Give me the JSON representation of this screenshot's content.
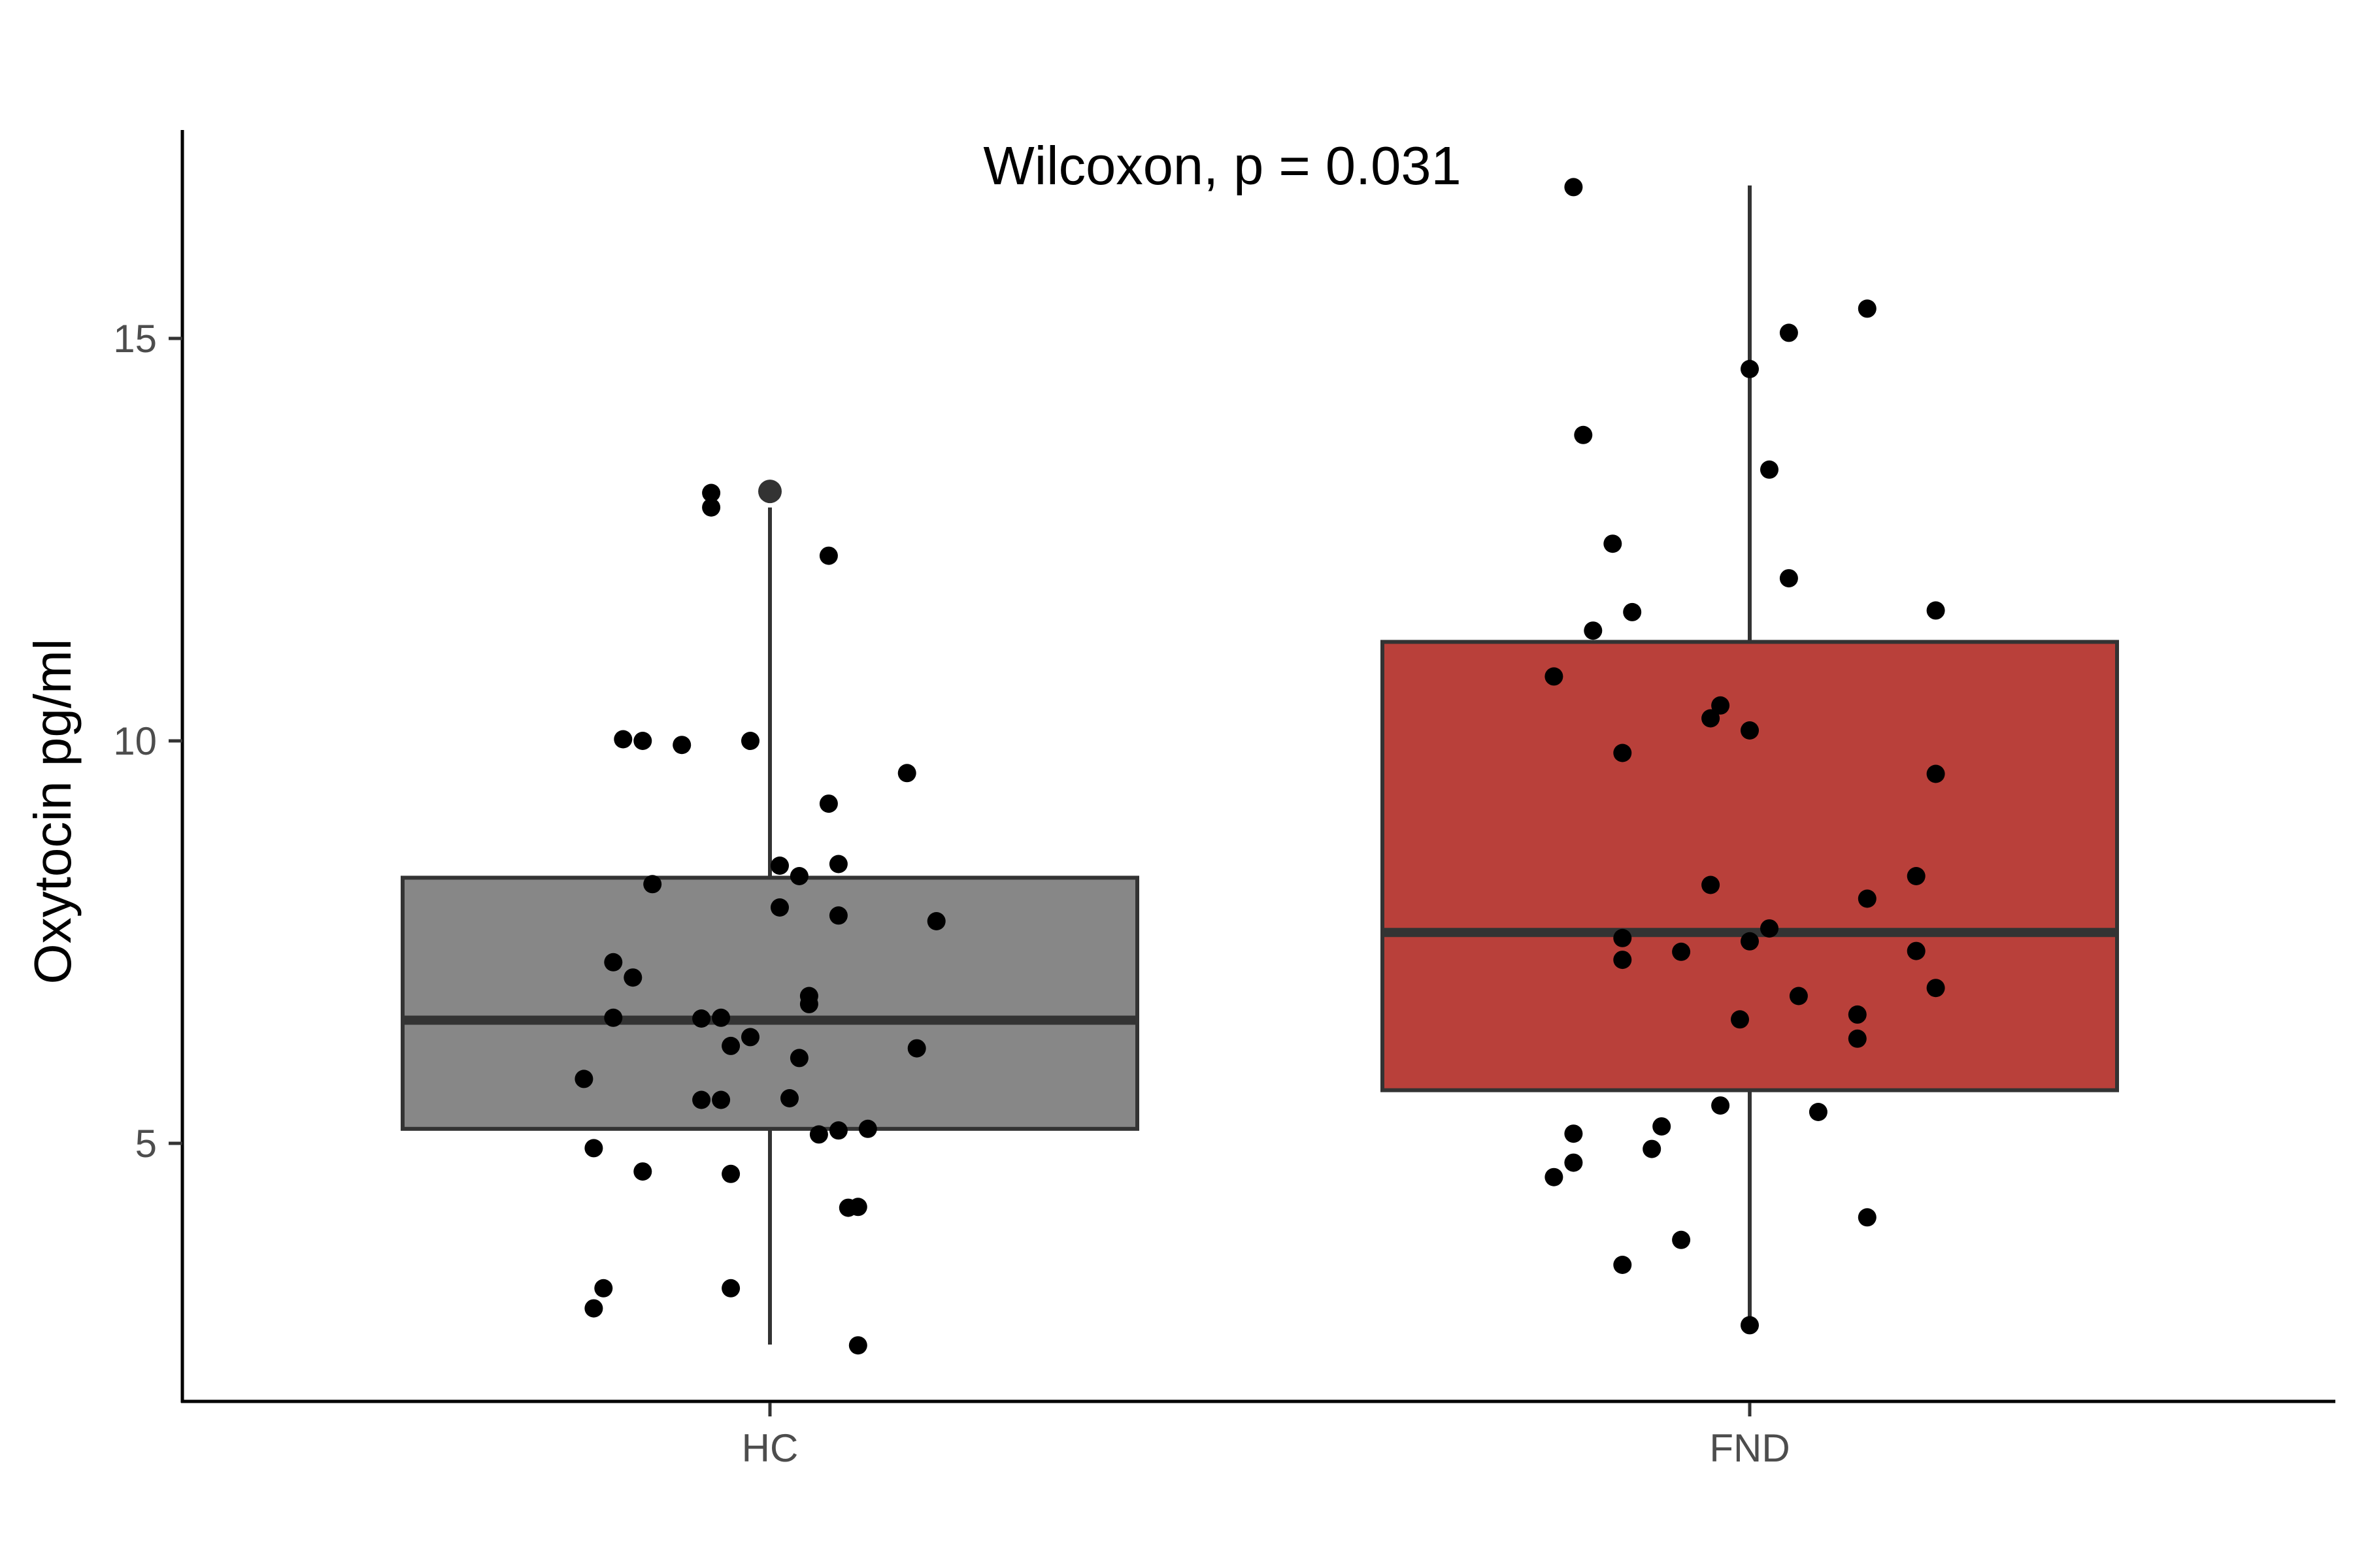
{
  "chart_data": {
    "type": "box",
    "annotation": "Wilcoxon, p = 0.031",
    "ylabel": "Oxytocin pg/ml",
    "xlabel": "",
    "categories": [
      "HC",
      "FND"
    ],
    "y_ticks": [
      5,
      10,
      15
    ],
    "ylim": [
      1.9,
      17.7
    ],
    "colors": {
      "HC": "#878787",
      "FND": "#b9403a",
      "outline": "#333333",
      "points": "#000000"
    },
    "boxes": [
      {
        "category": "HC",
        "q1": 5.18,
        "median": 6.53,
        "q3": 8.3,
        "whisker_low": 2.5,
        "whisker_high": 12.9,
        "outliers": [
          13.1
        ]
      },
      {
        "category": "FND",
        "q1": 5.66,
        "median": 7.62,
        "q3": 11.23,
        "whisker_low": 2.75,
        "whisker_high": 16.9,
        "outliers": []
      }
    ],
    "points": [
      {
        "group": "HC",
        "jitter": -0.06,
        "y": 13.08
      },
      {
        "group": "HC",
        "jitter": -0.06,
        "y": 12.9
      },
      {
        "group": "HC",
        "jitter": 0.06,
        "y": 12.3
      },
      {
        "group": "HC",
        "jitter": -0.15,
        "y": 10.02
      },
      {
        "group": "HC",
        "jitter": -0.13,
        "y": 10.0
      },
      {
        "group": "HC",
        "jitter": -0.09,
        "y": 9.95
      },
      {
        "group": "HC",
        "jitter": -0.02,
        "y": 10.0
      },
      {
        "group": "HC",
        "jitter": 0.14,
        "y": 9.6
      },
      {
        "group": "HC",
        "jitter": 0.06,
        "y": 9.22
      },
      {
        "group": "HC",
        "jitter": 0.01,
        "y": 8.45
      },
      {
        "group": "HC",
        "jitter": 0.07,
        "y": 8.47
      },
      {
        "group": "HC",
        "jitter": 0.03,
        "y": 8.32
      },
      {
        "group": "HC",
        "jitter": -0.12,
        "y": 8.22
      },
      {
        "group": "HC",
        "jitter": 0.01,
        "y": 7.93
      },
      {
        "group": "HC",
        "jitter": 0.07,
        "y": 7.83
      },
      {
        "group": "HC",
        "jitter": 0.17,
        "y": 7.76
      },
      {
        "group": "HC",
        "jitter": -0.16,
        "y": 7.25
      },
      {
        "group": "HC",
        "jitter": -0.14,
        "y": 7.06
      },
      {
        "group": "HC",
        "jitter": 0.04,
        "y": 6.83
      },
      {
        "group": "HC",
        "jitter": 0.04,
        "y": 6.73
      },
      {
        "group": "HC",
        "jitter": -0.16,
        "y": 6.56
      },
      {
        "group": "HC",
        "jitter": -0.07,
        "y": 6.55
      },
      {
        "group": "HC",
        "jitter": -0.05,
        "y": 6.56
      },
      {
        "group": "HC",
        "jitter": -0.02,
        "y": 6.32
      },
      {
        "group": "HC",
        "jitter": -0.04,
        "y": 6.21
      },
      {
        "group": "HC",
        "jitter": 0.15,
        "y": 6.18
      },
      {
        "group": "HC",
        "jitter": 0.03,
        "y": 6.06
      },
      {
        "group": "HC",
        "jitter": -0.19,
        "y": 5.8
      },
      {
        "group": "HC",
        "jitter": -0.07,
        "y": 5.54
      },
      {
        "group": "HC",
        "jitter": -0.05,
        "y": 5.54
      },
      {
        "group": "HC",
        "jitter": 0.02,
        "y": 5.56
      },
      {
        "group": "HC",
        "jitter": 0.05,
        "y": 5.11
      },
      {
        "group": "HC",
        "jitter": 0.07,
        "y": 5.16
      },
      {
        "group": "HC",
        "jitter": 0.1,
        "y": 5.18
      },
      {
        "group": "HC",
        "jitter": -0.18,
        "y": 4.94
      },
      {
        "group": "HC",
        "jitter": -0.13,
        "y": 4.65
      },
      {
        "group": "HC",
        "jitter": -0.04,
        "y": 4.62
      },
      {
        "group": "HC",
        "jitter": 0.08,
        "y": 4.2
      },
      {
        "group": "HC",
        "jitter": 0.09,
        "y": 4.21
      },
      {
        "group": "HC",
        "jitter": -0.17,
        "y": 3.2
      },
      {
        "group": "HC",
        "jitter": -0.04,
        "y": 3.2
      },
      {
        "group": "HC",
        "jitter": -0.18,
        "y": 2.95
      },
      {
        "group": "HC",
        "jitter": 0.09,
        "y": 2.49
      },
      {
        "group": "FND",
        "jitter": -0.18,
        "y": 16.88
      },
      {
        "group": "FND",
        "jitter": 0.12,
        "y": 15.37
      },
      {
        "group": "FND",
        "jitter": 0.04,
        "y": 15.07
      },
      {
        "group": "FND",
        "jitter": 0.0,
        "y": 14.62
      },
      {
        "group": "FND",
        "jitter": -0.17,
        "y": 13.8
      },
      {
        "group": "FND",
        "jitter": 0.02,
        "y": 13.37
      },
      {
        "group": "FND",
        "jitter": -0.14,
        "y": 12.45
      },
      {
        "group": "FND",
        "jitter": 0.04,
        "y": 12.02
      },
      {
        "group": "FND",
        "jitter": -0.12,
        "y": 11.6
      },
      {
        "group": "FND",
        "jitter": 0.19,
        "y": 11.62
      },
      {
        "group": "FND",
        "jitter": -0.16,
        "y": 11.37
      },
      {
        "group": "FND",
        "jitter": -0.2,
        "y": 10.8
      },
      {
        "group": "FND",
        "jitter": -0.03,
        "y": 10.44
      },
      {
        "group": "FND",
        "jitter": -0.04,
        "y": 10.28
      },
      {
        "group": "FND",
        "jitter": 0.0,
        "y": 10.13
      },
      {
        "group": "FND",
        "jitter": -0.13,
        "y": 9.85
      },
      {
        "group": "FND",
        "jitter": 0.19,
        "y": 9.59
      },
      {
        "group": "FND",
        "jitter": 0.17,
        "y": 8.32
      },
      {
        "group": "FND",
        "jitter": -0.04,
        "y": 8.21
      },
      {
        "group": "FND",
        "jitter": 0.12,
        "y": 8.04
      },
      {
        "group": "FND",
        "jitter": 0.02,
        "y": 7.67
      },
      {
        "group": "FND",
        "jitter": -0.13,
        "y": 7.55
      },
      {
        "group": "FND",
        "jitter": 0.0,
        "y": 7.51
      },
      {
        "group": "FND",
        "jitter": -0.07,
        "y": 7.38
      },
      {
        "group": "FND",
        "jitter": 0.17,
        "y": 7.39
      },
      {
        "group": "FND",
        "jitter": -0.13,
        "y": 7.28
      },
      {
        "group": "FND",
        "jitter": 0.19,
        "y": 6.93
      },
      {
        "group": "FND",
        "jitter": 0.05,
        "y": 6.83
      },
      {
        "group": "FND",
        "jitter": 0.11,
        "y": 6.6
      },
      {
        "group": "FND",
        "jitter": -0.01,
        "y": 6.54
      },
      {
        "group": "FND",
        "jitter": 0.11,
        "y": 6.3
      },
      {
        "group": "FND",
        "jitter": -0.03,
        "y": 5.47
      },
      {
        "group": "FND",
        "jitter": 0.07,
        "y": 5.39
      },
      {
        "group": "FND",
        "jitter": -0.09,
        "y": 5.21
      },
      {
        "group": "FND",
        "jitter": -0.18,
        "y": 5.12
      },
      {
        "group": "FND",
        "jitter": -0.1,
        "y": 4.93
      },
      {
        "group": "FND",
        "jitter": -0.18,
        "y": 4.76
      },
      {
        "group": "FND",
        "jitter": -0.2,
        "y": 4.58
      },
      {
        "group": "FND",
        "jitter": 0.12,
        "y": 4.08
      },
      {
        "group": "FND",
        "jitter": -0.07,
        "y": 3.8
      },
      {
        "group": "FND",
        "jitter": -0.13,
        "y": 3.49
      },
      {
        "group": "FND",
        "jitter": 0.0,
        "y": 2.74
      }
    ]
  }
}
